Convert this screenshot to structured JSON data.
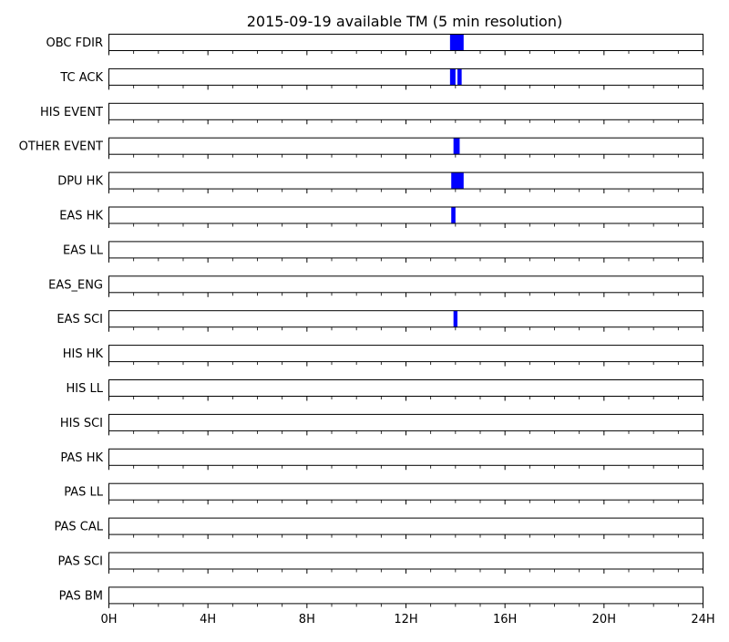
{
  "chart_data": {
    "type": "timeline",
    "title": "2015-09-19 available TM (5 min resolution)",
    "xlabel": "",
    "ylabel": "",
    "x_unit": "hours",
    "xlim": [
      0,
      24
    ],
    "x_ticks": [
      {
        "value": 0,
        "label": "0H"
      },
      {
        "value": 4,
        "label": "4H"
      },
      {
        "value": 8,
        "label": "8H"
      },
      {
        "value": 12,
        "label": "12H"
      },
      {
        "value": 16,
        "label": "16H"
      },
      {
        "value": 20,
        "label": "20H"
      },
      {
        "value": 24,
        "label": "24H"
      }
    ],
    "minor_tick_step_hours": 1,
    "bar_color": "#0000ff",
    "series": [
      {
        "name": "OBC FDIR",
        "intervals": [
          [
            13.78,
            14.33
          ]
        ]
      },
      {
        "name": "TC ACK",
        "intervals": [
          [
            13.78,
            14.0
          ],
          [
            14.08,
            14.25
          ]
        ]
      },
      {
        "name": "HIS EVENT",
        "intervals": []
      },
      {
        "name": "OTHER EVENT",
        "intervals": [
          [
            13.92,
            14.17
          ]
        ]
      },
      {
        "name": "DPU HK",
        "intervals": [
          [
            13.83,
            14.33
          ]
        ]
      },
      {
        "name": "EAS HK",
        "intervals": [
          [
            13.83,
            14.0
          ]
        ]
      },
      {
        "name": "EAS LL",
        "intervals": []
      },
      {
        "name": "EAS_ENG",
        "intervals": []
      },
      {
        "name": "EAS SCI",
        "intervals": [
          [
            13.92,
            14.08
          ]
        ]
      },
      {
        "name": "HIS HK",
        "intervals": []
      },
      {
        "name": "HIS LL",
        "intervals": []
      },
      {
        "name": "HIS SCI",
        "intervals": []
      },
      {
        "name": "PAS HK",
        "intervals": []
      },
      {
        "name": "PAS LL",
        "intervals": []
      },
      {
        "name": "PAS CAL",
        "intervals": []
      },
      {
        "name": "PAS SCI",
        "intervals": []
      },
      {
        "name": "PAS BM",
        "intervals": []
      }
    ]
  }
}
